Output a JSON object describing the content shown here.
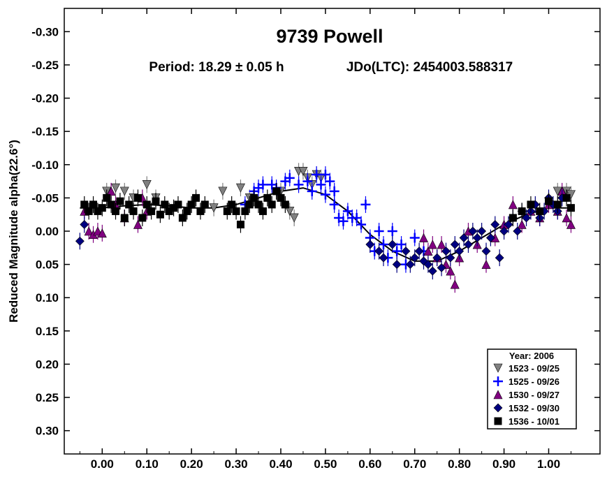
{
  "chart_data": {
    "type": "scatter",
    "title": "9739 Powell",
    "subtitle_period": "Period: 18.29 ± 0.05 h",
    "subtitle_epoch": "JDo(LTC): 2454003.588317",
    "ylabel": "Reduced Magnitude alpha(22.6°)",
    "xlabel": "",
    "xlim": [
      -0.085,
      1.115
    ],
    "ylim": [
      0.335,
      -0.335
    ],
    "y_inverted": true,
    "grid": false,
    "legend_position": "bottom-right",
    "x_ticks": [
      0.0,
      0.1,
      0.2,
      0.3,
      0.4,
      0.5,
      0.6,
      0.7,
      0.8,
      0.9,
      1.0
    ],
    "x_tick_labels": [
      "0.00",
      "0.10",
      "0.20",
      "0.30",
      "0.40",
      "0.50",
      "0.60",
      "0.70",
      "0.80",
      "0.90",
      "1.00"
    ],
    "y_ticks": [
      -0.3,
      -0.25,
      -0.2,
      -0.15,
      -0.1,
      -0.05,
      0.0,
      0.05,
      0.1,
      0.15,
      0.2,
      0.25,
      0.3
    ],
    "y_tick_labels": [
      "-0.30",
      "-0.25",
      "-0.20",
      "-0.15",
      "-0.10",
      "-0.05",
      "0.00",
      "0.05",
      "0.10",
      "0.15",
      "0.20",
      "0.25",
      "0.30"
    ],
    "legend_title": "Year: 2006",
    "series": [
      {
        "name": "1523 - 09/25",
        "marker": "triangle-down",
        "color": "#808080",
        "points": [
          [
            0.01,
            -0.06
          ],
          [
            0.03,
            -0.065
          ],
          [
            0.05,
            -0.06
          ],
          [
            0.07,
            -0.05
          ],
          [
            0.1,
            -0.07
          ],
          [
            0.12,
            -0.05
          ],
          [
            0.25,
            -0.035
          ],
          [
            0.27,
            -0.06
          ],
          [
            0.31,
            -0.065
          ],
          [
            0.33,
            -0.05
          ],
          [
            0.4,
            -0.06
          ],
          [
            0.42,
            -0.03
          ],
          [
            0.43,
            -0.02
          ],
          [
            0.44,
            -0.09
          ],
          [
            0.45,
            -0.09
          ],
          [
            0.46,
            -0.08
          ],
          [
            0.47,
            -0.07
          ],
          [
            0.48,
            -0.085
          ],
          [
            0.49,
            -0.08
          ],
          [
            1.02,
            -0.06
          ],
          [
            1.04,
            -0.06
          ],
          [
            1.05,
            -0.055
          ]
        ]
      },
      {
        "name": "1525 - 09/26",
        "marker": "plus",
        "color": "#0000ff",
        "points": [
          [
            0.32,
            -0.04
          ],
          [
            0.34,
            -0.06
          ],
          [
            0.35,
            -0.065
          ],
          [
            0.36,
            -0.07
          ],
          [
            0.38,
            -0.07
          ],
          [
            0.39,
            -0.065
          ],
          [
            0.41,
            -0.075
          ],
          [
            0.42,
            -0.08
          ],
          [
            0.44,
            -0.07
          ],
          [
            0.46,
            -0.075
          ],
          [
            0.47,
            -0.06
          ],
          [
            0.48,
            -0.085
          ],
          [
            0.49,
            -0.07
          ],
          [
            0.5,
            -0.085
          ],
          [
            0.5,
            -0.055
          ],
          [
            0.51,
            -0.075
          ],
          [
            0.52,
            -0.06
          ],
          [
            0.52,
            -0.04
          ],
          [
            0.53,
            -0.02
          ],
          [
            0.54,
            -0.015
          ],
          [
            0.55,
            -0.03
          ],
          [
            0.56,
            -0.02
          ],
          [
            0.57,
            -0.02
          ],
          [
            0.58,
            -0.01
          ],
          [
            0.59,
            -0.04
          ],
          [
            0.6,
            0.01
          ],
          [
            0.61,
            0.03
          ],
          [
            0.62,
            0.0
          ],
          [
            0.63,
            0.02
          ],
          [
            0.64,
            0.04
          ],
          [
            0.65,
            0.0
          ],
          [
            0.66,
            0.03
          ],
          [
            0.67,
            0.02
          ],
          [
            0.68,
            0.05
          ],
          [
            0.7,
            0.01
          ],
          [
            0.72,
            0.03
          ]
        ]
      },
      {
        "name": "1530 - 09/27",
        "marker": "triangle-up",
        "color": "#800080",
        "points": [
          [
            -0.04,
            -0.03
          ],
          [
            -0.03,
            0.0
          ],
          [
            -0.02,
            0.005
          ],
          [
            -0.01,
            0.0
          ],
          [
            0.0,
            0.003
          ],
          [
            0.02,
            -0.06
          ],
          [
            0.03,
            -0.04
          ],
          [
            0.05,
            -0.02
          ],
          [
            0.08,
            -0.01
          ],
          [
            0.09,
            -0.05
          ],
          [
            0.1,
            -0.03
          ],
          [
            0.72,
            0.01
          ],
          [
            0.73,
            0.03
          ],
          [
            0.74,
            0.02
          ],
          [
            0.75,
            0.04
          ],
          [
            0.76,
            0.02
          ],
          [
            0.77,
            0.05
          ],
          [
            0.78,
            0.06
          ],
          [
            0.79,
            0.08
          ],
          [
            0.8,
            0.04
          ],
          [
            0.82,
            0.0
          ],
          [
            0.84,
            0.02
          ],
          [
            0.86,
            0.05
          ],
          [
            0.88,
            0.01
          ],
          [
            0.9,
            -0.01
          ],
          [
            0.92,
            -0.04
          ],
          [
            0.94,
            -0.01
          ],
          [
            0.96,
            -0.03
          ],
          [
            0.98,
            -0.02
          ],
          [
            1.0,
            -0.04
          ],
          [
            1.02,
            -0.03
          ],
          [
            1.03,
            -0.06
          ],
          [
            1.04,
            -0.02
          ],
          [
            1.05,
            -0.01
          ]
        ]
      },
      {
        "name": "1532 - 09/30",
        "marker": "diamond",
        "color": "#000080",
        "points": [
          [
            -0.05,
            0.015
          ],
          [
            -0.04,
            -0.01
          ],
          [
            0.6,
            0.02
          ],
          [
            0.62,
            0.03
          ],
          [
            0.63,
            0.04
          ],
          [
            0.65,
            0.02
          ],
          [
            0.66,
            0.05
          ],
          [
            0.68,
            0.03
          ],
          [
            0.69,
            0.05
          ],
          [
            0.7,
            0.04
          ],
          [
            0.71,
            0.03
          ],
          [
            0.72,
            0.045
          ],
          [
            0.73,
            0.05
          ],
          [
            0.74,
            0.06
          ],
          [
            0.75,
            0.04
          ],
          [
            0.76,
            0.055
          ],
          [
            0.77,
            0.03
          ],
          [
            0.78,
            0.04
          ],
          [
            0.79,
            0.02
          ],
          [
            0.8,
            0.03
          ],
          [
            0.81,
            0.01
          ],
          [
            0.82,
            0.02
          ],
          [
            0.83,
            0.0
          ],
          [
            0.84,
            0.01
          ],
          [
            0.85,
            0.0
          ],
          [
            0.86,
            0.03
          ],
          [
            0.87,
            0.01
          ],
          [
            0.88,
            -0.01
          ],
          [
            0.89,
            0.04
          ],
          [
            0.9,
            0.0
          ],
          [
            0.91,
            -0.01
          ],
          [
            0.92,
            -0.02
          ],
          [
            0.93,
            0.0
          ],
          [
            0.94,
            -0.03
          ],
          [
            0.95,
            -0.02
          ],
          [
            0.96,
            -0.03
          ],
          [
            0.97,
            -0.04
          ],
          [
            0.98,
            -0.02
          ],
          [
            0.99,
            -0.03
          ],
          [
            1.0,
            -0.05
          ],
          [
            1.01,
            -0.04
          ],
          [
            1.02,
            -0.03
          ],
          [
            1.03,
            -0.05
          ]
        ]
      },
      {
        "name": "1536 - 10/01",
        "marker": "square",
        "color": "#000000",
        "points": [
          [
            -0.04,
            -0.04
          ],
          [
            -0.03,
            -0.03
          ],
          [
            -0.02,
            -0.04
          ],
          [
            -0.01,
            -0.03
          ],
          [
            0.0,
            -0.035
          ],
          [
            0.01,
            -0.05
          ],
          [
            0.02,
            -0.04
          ],
          [
            0.03,
            -0.03
          ],
          [
            0.04,
            -0.045
          ],
          [
            0.05,
            -0.02
          ],
          [
            0.06,
            -0.04
          ],
          [
            0.07,
            -0.03
          ],
          [
            0.08,
            -0.05
          ],
          [
            0.09,
            -0.02
          ],
          [
            0.1,
            -0.04
          ],
          [
            0.11,
            -0.03
          ],
          [
            0.12,
            -0.045
          ],
          [
            0.13,
            -0.025
          ],
          [
            0.14,
            -0.04
          ],
          [
            0.15,
            -0.03
          ],
          [
            0.16,
            -0.035
          ],
          [
            0.17,
            -0.04
          ],
          [
            0.18,
            -0.02
          ],
          [
            0.19,
            -0.03
          ],
          [
            0.2,
            -0.04
          ],
          [
            0.21,
            -0.05
          ],
          [
            0.22,
            -0.03
          ],
          [
            0.23,
            -0.04
          ],
          [
            0.28,
            -0.03
          ],
          [
            0.29,
            -0.04
          ],
          [
            0.3,
            -0.03
          ],
          [
            0.31,
            -0.01
          ],
          [
            0.32,
            -0.03
          ],
          [
            0.33,
            -0.04
          ],
          [
            0.34,
            -0.05
          ],
          [
            0.35,
            -0.04
          ],
          [
            0.36,
            -0.03
          ],
          [
            0.37,
            -0.05
          ],
          [
            0.38,
            -0.04
          ],
          [
            0.39,
            -0.06
          ],
          [
            0.4,
            -0.05
          ],
          [
            0.41,
            -0.04
          ],
          [
            0.92,
            -0.02
          ],
          [
            0.94,
            -0.03
          ],
          [
            0.96,
            -0.04
          ],
          [
            0.98,
            -0.03
          ],
          [
            1.0,
            -0.045
          ],
          [
            1.02,
            -0.04
          ],
          [
            1.04,
            -0.05
          ],
          [
            1.05,
            -0.035
          ]
        ]
      }
    ],
    "fit_curve": [
      [
        -0.05,
        -0.035
      ],
      [
        0.0,
        -0.035
      ],
      [
        0.05,
        -0.038
      ],
      [
        0.1,
        -0.04
      ],
      [
        0.15,
        -0.038
      ],
      [
        0.2,
        -0.035
      ],
      [
        0.25,
        -0.035
      ],
      [
        0.3,
        -0.04
      ],
      [
        0.35,
        -0.05
      ],
      [
        0.4,
        -0.06
      ],
      [
        0.45,
        -0.065
      ],
      [
        0.5,
        -0.055
      ],
      [
        0.55,
        -0.03
      ],
      [
        0.6,
        0.005
      ],
      [
        0.65,
        0.03
      ],
      [
        0.7,
        0.045
      ],
      [
        0.75,
        0.045
      ],
      [
        0.8,
        0.03
      ],
      [
        0.85,
        0.01
      ],
      [
        0.9,
        -0.01
      ],
      [
        0.95,
        -0.025
      ],
      [
        1.0,
        -0.035
      ],
      [
        1.05,
        -0.035
      ]
    ]
  }
}
